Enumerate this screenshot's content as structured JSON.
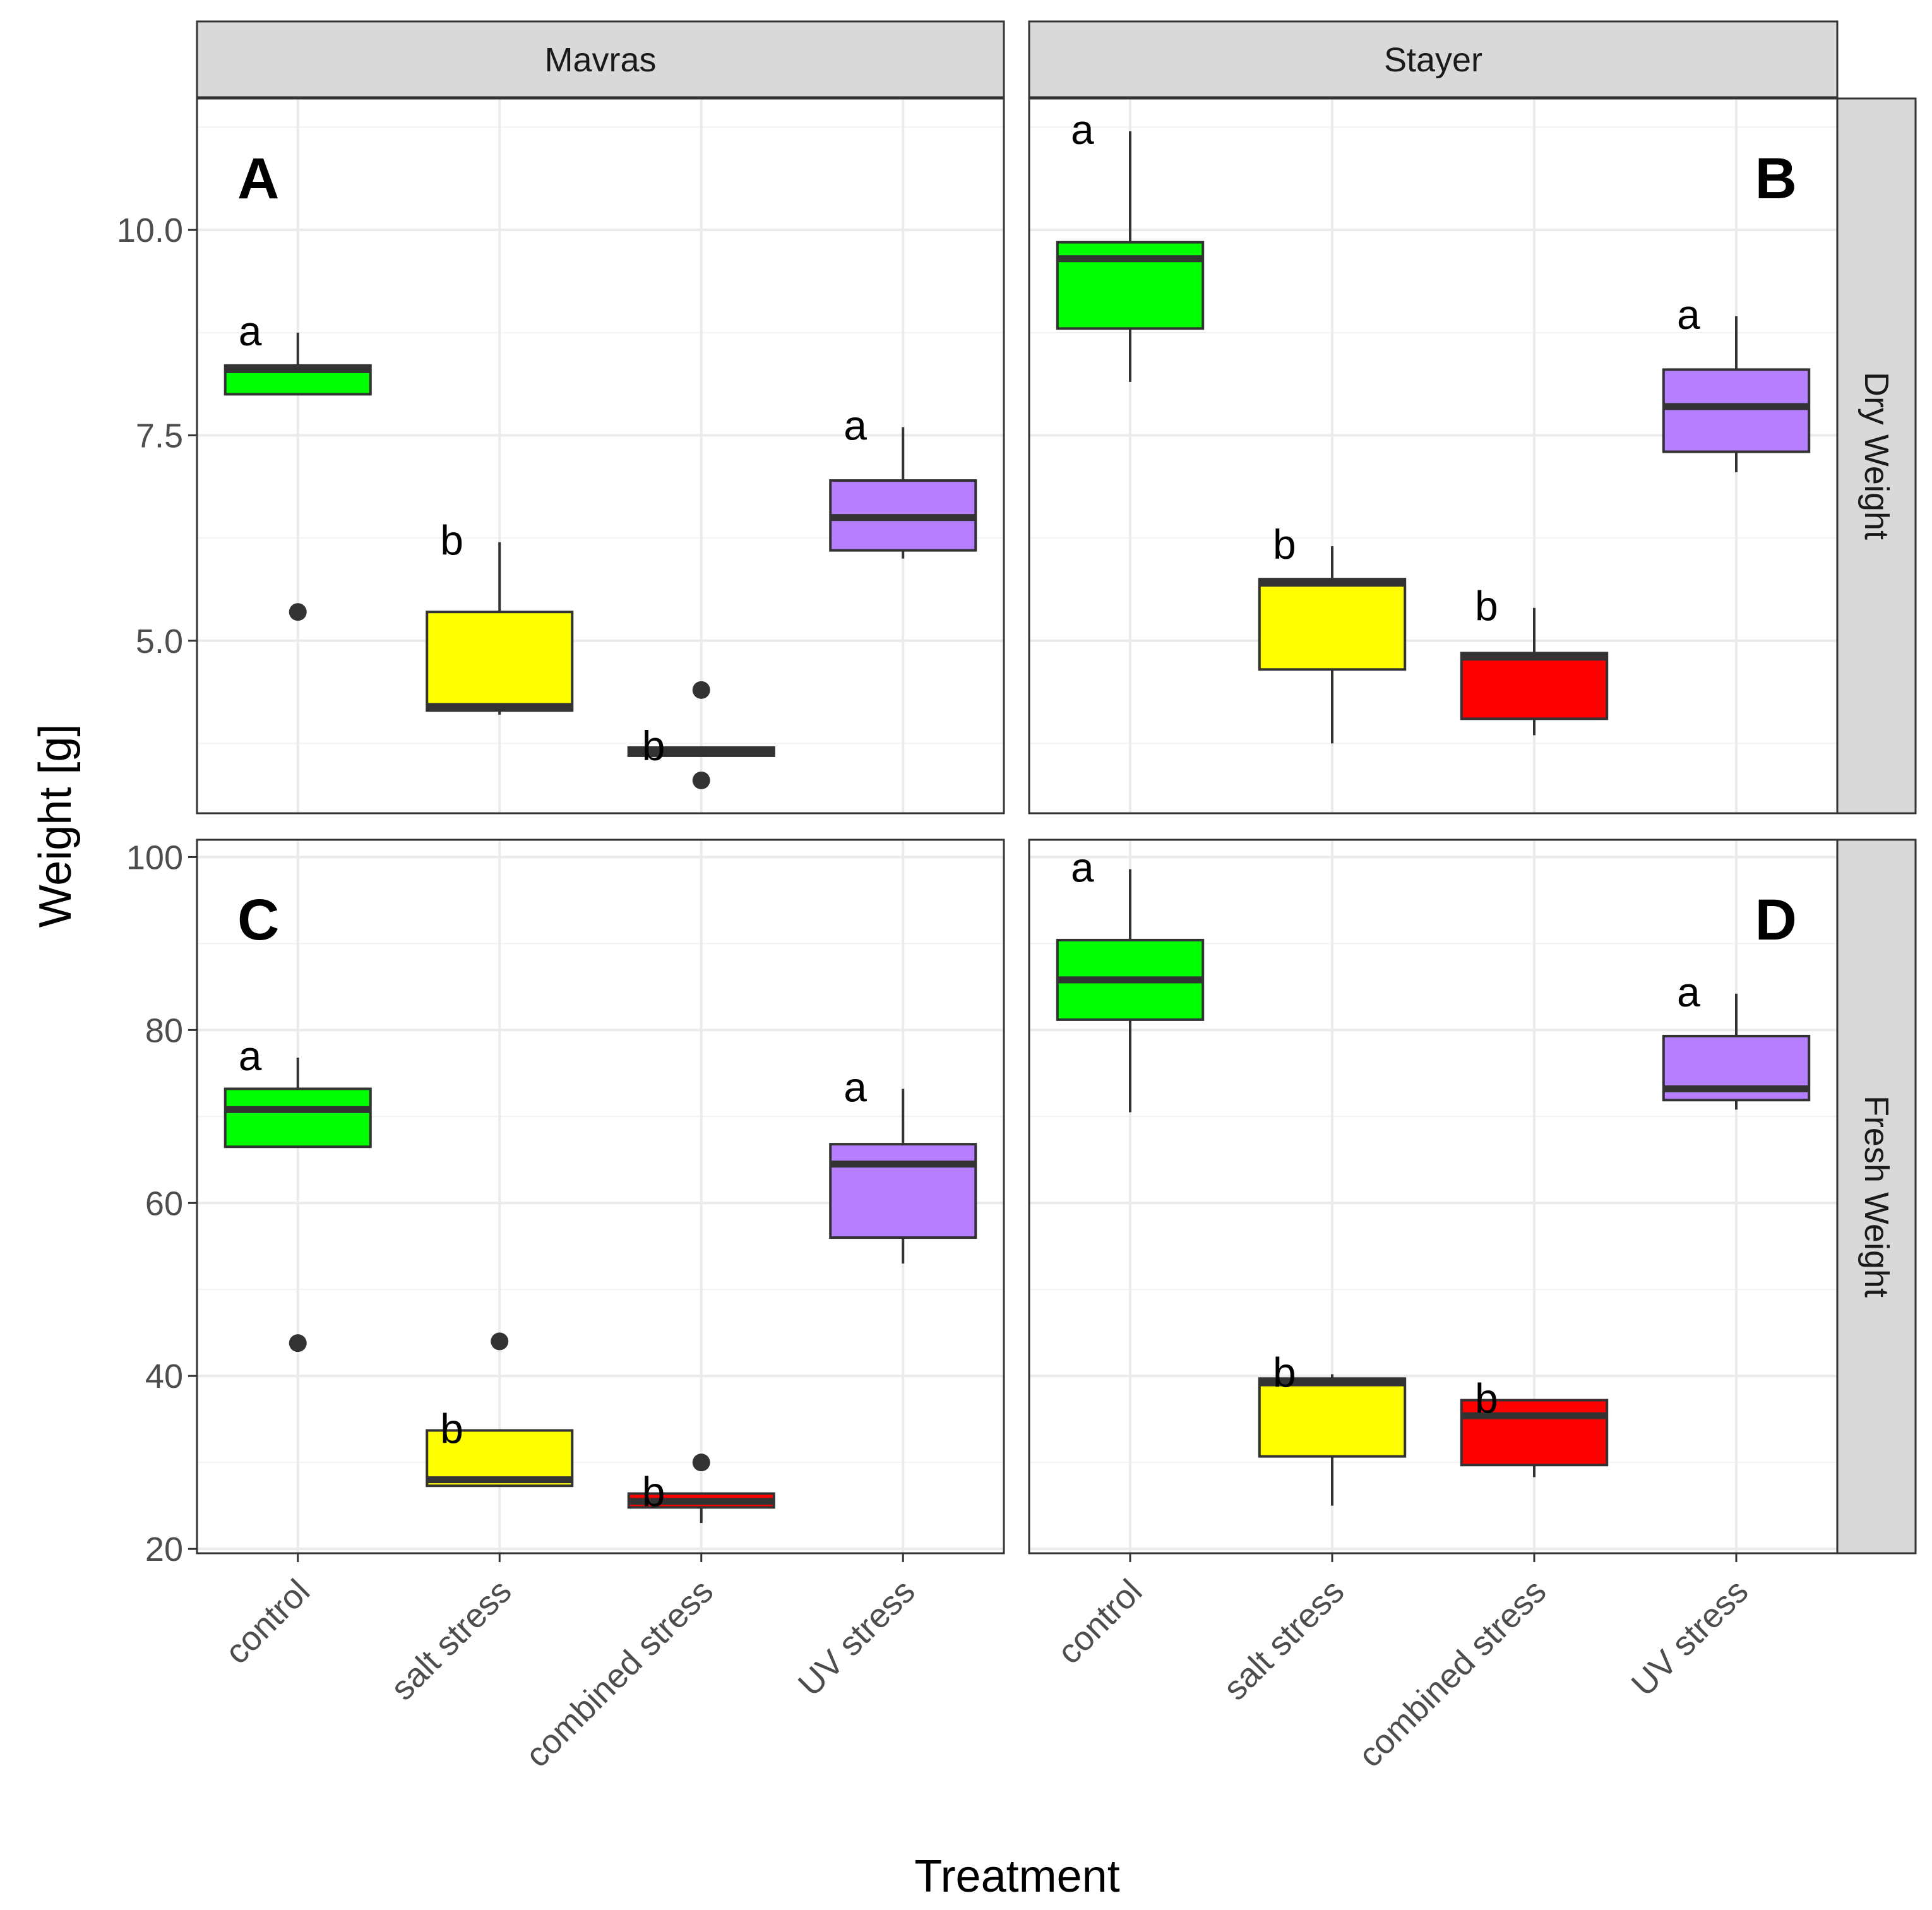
{
  "chart_data": {
    "type": "box",
    "ylabel": "Weight [g]",
    "xlabel": "Treatment",
    "categories": [
      "control",
      "salt stress",
      "combined stress",
      "UV stress"
    ],
    "category_colors": [
      "#00ff00",
      "#ffff00",
      "#ff0000",
      "#b57fff"
    ],
    "columns": [
      "Mavras",
      "Stayer"
    ],
    "rows": [
      "Dry Weight",
      "Fresh Weight"
    ],
    "rows_config": [
      {
        "ylim": [
          2.9,
          11.6
        ],
        "ticks": [
          5.0,
          7.5,
          10.0
        ],
        "tick_labels": [
          "5.0",
          "7.5",
          "10.0"
        ]
      },
      {
        "ylim": [
          19.5,
          102
        ],
        "ticks": [
          20,
          40,
          60,
          80,
          100
        ],
        "tick_labels": [
          "20",
          "40",
          "60",
          "80",
          "100"
        ]
      }
    ],
    "panels": [
      {
        "label": "A",
        "column": "Mavras",
        "row": "Dry Weight",
        "boxes": [
          {
            "category": "control",
            "whisker_low": 8.0,
            "q1": 8.0,
            "median": 8.3,
            "q3": 8.35,
            "whisker_high": 8.75,
            "outliers": [
              5.35
            ],
            "letter": "a"
          },
          {
            "category": "salt stress",
            "whisker_low": 4.1,
            "q1": 4.15,
            "median": 4.2,
            "q3": 5.35,
            "whisker_high": 6.2,
            "outliers": [],
            "letter": "b"
          },
          {
            "category": "combined stress",
            "whisker_low": 3.6,
            "q1": 3.6,
            "median": 3.65,
            "q3": 3.7,
            "whisker_high": 3.7,
            "outliers": [
              4.4,
              3.3
            ],
            "letter": "b"
          },
          {
            "category": "UV stress",
            "whisker_low": 6.0,
            "q1": 6.1,
            "median": 6.5,
            "q3": 6.95,
            "whisker_high": 7.6,
            "outliers": [],
            "letter": "a"
          }
        ]
      },
      {
        "label": "B",
        "column": "Stayer",
        "row": "Dry Weight",
        "boxes": [
          {
            "category": "control",
            "whisker_low": 8.15,
            "q1": 8.8,
            "median": 9.65,
            "q3": 9.85,
            "whisker_high": 11.2,
            "outliers": [],
            "letter": "a"
          },
          {
            "category": "salt stress",
            "whisker_low": 3.75,
            "q1": 4.65,
            "median": 5.7,
            "q3": 5.75,
            "whisker_high": 6.15,
            "outliers": [],
            "letter": "b"
          },
          {
            "category": "combined stress",
            "whisker_low": 3.85,
            "q1": 4.05,
            "median": 4.8,
            "q3": 4.85,
            "whisker_high": 5.4,
            "outliers": [],
            "letter": "b"
          },
          {
            "category": "UV stress",
            "whisker_low": 7.05,
            "q1": 7.3,
            "median": 7.85,
            "q3": 8.3,
            "whisker_high": 8.95,
            "outliers": [],
            "letter": "a"
          }
        ]
      },
      {
        "label": "C",
        "column": "Mavras",
        "row": "Fresh Weight",
        "boxes": [
          {
            "category": "control",
            "whisker_low": 66.5,
            "q1": 66.5,
            "median": 70.8,
            "q3": 73.2,
            "whisker_high": 76.8,
            "outliers": [
              43.8
            ],
            "letter": "a"
          },
          {
            "category": "salt stress",
            "whisker_low": 27.3,
            "q1": 27.3,
            "median": 28.0,
            "q3": 33.7,
            "whisker_high": 33.7,
            "outliers": [
              44.0
            ],
            "letter": "b"
          },
          {
            "category": "combined stress",
            "whisker_low": 23.0,
            "q1": 24.8,
            "median": 25.5,
            "q3": 26.4,
            "whisker_high": 26.4,
            "outliers": [
              30.0
            ],
            "letter": "b"
          },
          {
            "category": "UV stress",
            "whisker_low": 53.0,
            "q1": 56.0,
            "median": 64.5,
            "q3": 66.8,
            "whisker_high": 73.2,
            "outliers": [],
            "letter": "a"
          }
        ]
      },
      {
        "label": "D",
        "column": "Stayer",
        "row": "Fresh Weight",
        "boxes": [
          {
            "category": "control",
            "whisker_low": 70.5,
            "q1": 81.2,
            "median": 85.8,
            "q3": 90.4,
            "whisker_high": 98.6,
            "outliers": [],
            "letter": "a"
          },
          {
            "category": "salt stress",
            "whisker_low": 25.0,
            "q1": 30.7,
            "median": 39.2,
            "q3": 39.7,
            "whisker_high": 40.2,
            "outliers": [],
            "letter": "b"
          },
          {
            "category": "combined stress",
            "whisker_low": 28.3,
            "q1": 29.7,
            "median": 35.4,
            "q3": 37.2,
            "whisker_high": 37.2,
            "outliers": [],
            "letter": "b"
          },
          {
            "category": "UV stress",
            "whisker_low": 70.8,
            "q1": 71.9,
            "median": 73.2,
            "q3": 79.3,
            "whisker_high": 84.2,
            "outliers": [],
            "letter": "a"
          }
        ]
      }
    ]
  }
}
